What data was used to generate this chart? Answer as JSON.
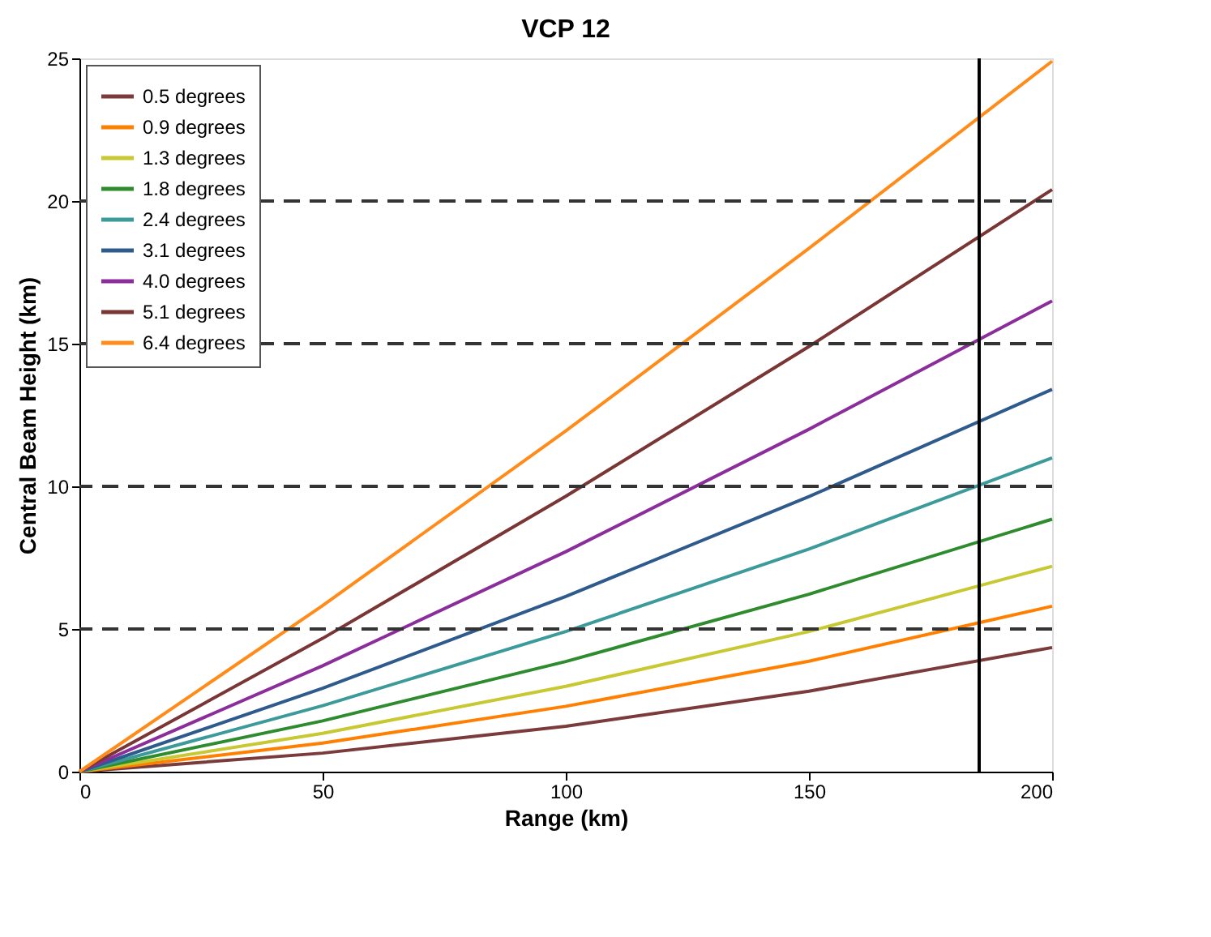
{
  "chart_data": {
    "type": "line",
    "title": "VCP 12",
    "xlabel": "Range (km)",
    "ylabel": "Central Beam Height (km)",
    "x": [
      0,
      50,
      100,
      150,
      200
    ],
    "series": [
      {
        "name": "0.5 degrees",
        "color": "#7b3b3b",
        "values": [
          0,
          0.65,
          1.59,
          2.82,
          4.35
        ]
      },
      {
        "name": "0.9 degrees",
        "color": "#ff8000",
        "values": [
          0,
          1.0,
          2.29,
          3.87,
          5.8
        ]
      },
      {
        "name": "1.3 degrees",
        "color": "#c8c832",
        "values": [
          0,
          1.34,
          2.99,
          4.91,
          7.2
        ]
      },
      {
        "name": "1.8 degrees",
        "color": "#2e8b2e",
        "values": [
          0,
          1.78,
          3.86,
          6.22,
          8.85
        ]
      },
      {
        "name": "2.4 degrees",
        "color": "#3c9a9a",
        "values": [
          0,
          2.31,
          4.91,
          7.8,
          11.0
        ]
      },
      {
        "name": "3.1 degrees",
        "color": "#2e5a8c",
        "values": [
          0,
          2.92,
          6.14,
          9.64,
          13.4
        ]
      },
      {
        "name": "4.0 degrees",
        "color": "#8b2e9b",
        "values": [
          0,
          3.71,
          7.71,
          12.0,
          16.5
        ]
      },
      {
        "name": "5.1 degrees",
        "color": "#7a3535",
        "values": [
          0,
          4.67,
          9.65,
          14.9,
          20.4
        ]
      },
      {
        "name": "6.4 degrees",
        "color": "#ff8c1a",
        "values": [
          0,
          5.82,
          11.94,
          18.34,
          24.9
        ]
      }
    ],
    "xlim": [
      0,
      200
    ],
    "xticks": [
      0,
      50,
      100,
      150,
      200
    ],
    "ylim": [
      0,
      25
    ],
    "yticks": [
      0,
      5,
      10,
      15,
      20,
      25
    ],
    "ref_lines": [
      {
        "axis": "y",
        "value": 5,
        "line_style": "dashed",
        "color": "#333333"
      },
      {
        "axis": "y",
        "value": 10,
        "line_style": "dashed",
        "color": "#333333"
      },
      {
        "axis": "y",
        "value": 15,
        "line_style": "dashed",
        "color": "#333333"
      },
      {
        "axis": "y",
        "value": 20,
        "line_style": "dashed",
        "color": "#333333"
      },
      {
        "axis": "x",
        "value": 185,
        "line_style": "solid",
        "color": "#000000"
      }
    ],
    "grid": false,
    "legend": "top left",
    "marker": "none",
    "line_style": "solid"
  }
}
